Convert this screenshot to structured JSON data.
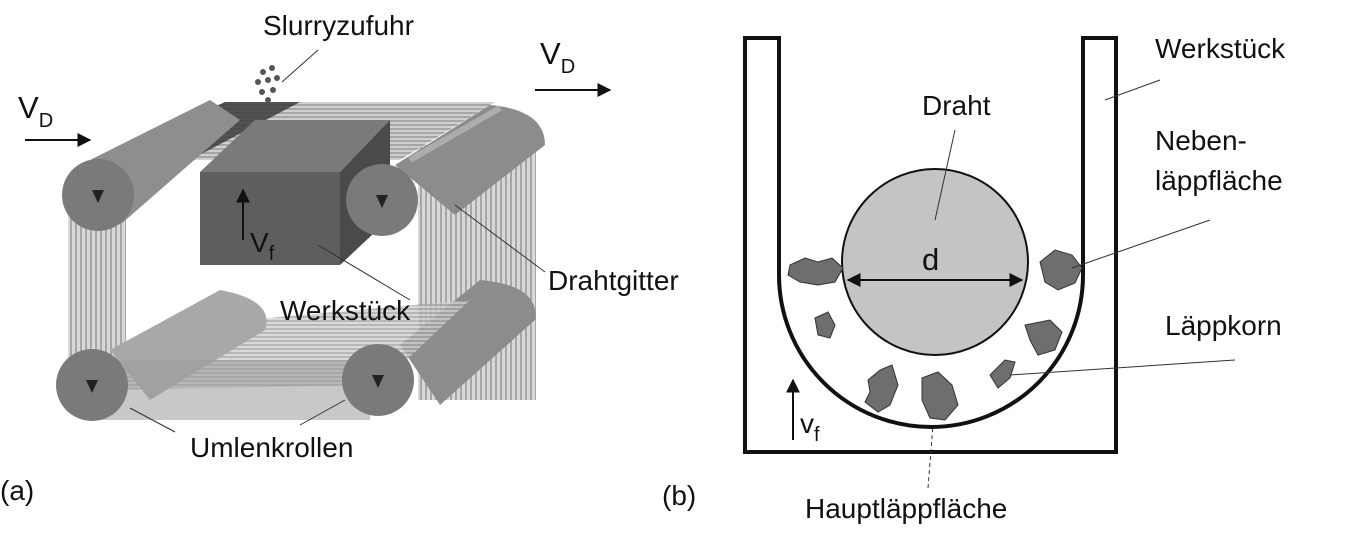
{
  "panel_a": {
    "panel_label": "(a)",
    "slurry_label": "Slurryzufuhr",
    "vd_left": {
      "main": "V",
      "sub": "D"
    },
    "vd_right": {
      "main": "V",
      "sub": "D"
    },
    "vf_label": {
      "main": "V",
      "sub": "f"
    },
    "workpiece_label": "Werkstück",
    "wire_grid_label": "Drahtgitter",
    "rollers_label": "Umlenkrollen"
  },
  "panel_b": {
    "panel_label": "(b)",
    "workpiece_label": "Werkstück",
    "wire_label": "Draht",
    "diameter_label": "d",
    "side_face_label_1": "Neben-",
    "side_face_label_2": "läppfläche",
    "grain_label": "Läppkorn",
    "main_face_label": "Hauptläppfläche",
    "vf_label": {
      "main": "v",
      "sub": "f"
    }
  },
  "colors": {
    "roller": "#7a7a7a",
    "roller_dark": "#555555",
    "wire_line": "#9a9a9a",
    "workpiece": "#5e5e5e",
    "grain": "#6e6e6e",
    "wire_circle": "#c4c4c4",
    "outline": "#111111"
  }
}
